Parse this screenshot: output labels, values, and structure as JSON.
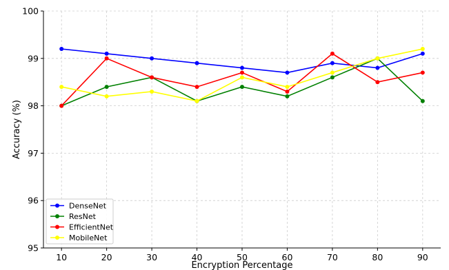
{
  "chart_data": {
    "type": "line",
    "title": "",
    "xlabel": "Encryption Percentage",
    "ylabel": "Accuracy (%)",
    "x": [
      10,
      20,
      30,
      40,
      50,
      60,
      70,
      80,
      90
    ],
    "xticks": [
      "10",
      "20",
      "30",
      "40",
      "50",
      "60",
      "70",
      "80",
      "90"
    ],
    "xlim": [
      6,
      94
    ],
    "ylim": [
      95,
      100
    ],
    "yticks": [
      "95",
      "96",
      "97",
      "98",
      "99",
      "100"
    ],
    "grid": true,
    "legend_position": "bottom-left",
    "series": [
      {
        "name": "DenseNet",
        "color": "#0000ff",
        "values": [
          99.2,
          99.1,
          99.0,
          98.9,
          98.8,
          98.7,
          98.9,
          98.8,
          99.1
        ]
      },
      {
        "name": "ResNet",
        "color": "#008000",
        "values": [
          98.0,
          98.4,
          98.6,
          98.1,
          98.4,
          98.2,
          98.6,
          99.0,
          98.1
        ]
      },
      {
        "name": "EfficientNet",
        "color": "#ff0000",
        "values": [
          98.0,
          99.0,
          98.6,
          98.4,
          98.7,
          98.3,
          99.1,
          98.5,
          98.7
        ]
      },
      {
        "name": "MobileNet",
        "color": "#ffff00",
        "values": [
          98.4,
          98.2,
          98.3,
          98.1,
          98.6,
          98.4,
          98.7,
          99.0,
          99.2
        ]
      }
    ]
  }
}
